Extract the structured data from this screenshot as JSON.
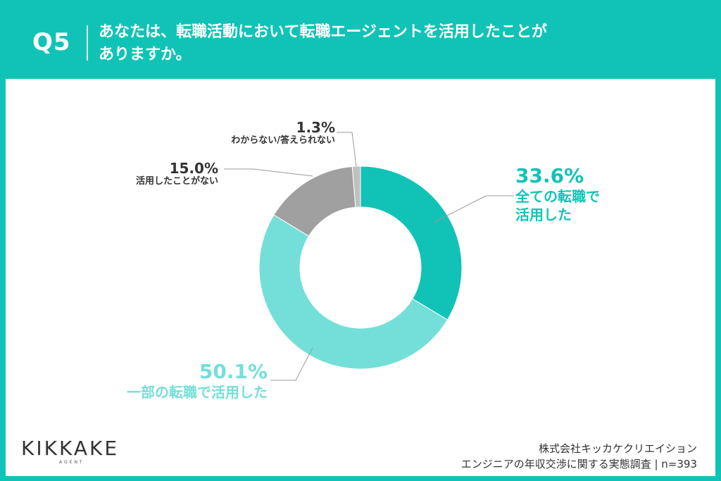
{
  "header": {
    "question_number": "Q5",
    "question_line1": "あなたは、転職活動において転職エージェントを活用したことが",
    "question_line2": "ありますか。"
  },
  "chart_data": {
    "type": "pie",
    "donut": true,
    "unit": "%",
    "slices": [
      {
        "label": "全ての転職で活用した",
        "label_line1": "全ての転職で",
        "label_line2": "活用した",
        "value": 33.6,
        "value_text": "33.6%",
        "color": "#11c3b7"
      },
      {
        "label": "一部の転職で活用した",
        "value": 50.1,
        "value_text": "50.1%",
        "color": "#74dfd8"
      },
      {
        "label": "活用したことがない",
        "value": 15.0,
        "value_text": "15.0%",
        "color": "#a0a0a0"
      },
      {
        "label": "わからない/答えられない",
        "value": 1.3,
        "value_text": "1.3%",
        "color": "#c0c0c0"
      }
    ]
  },
  "brand": {
    "logo_text": "KIKKAKE",
    "logo_sub": "AGENT"
  },
  "footer": {
    "company": "株式会社キッカケクリエイション",
    "survey": "エンジニアの年収交渉に関する実態調査 | n=393"
  }
}
